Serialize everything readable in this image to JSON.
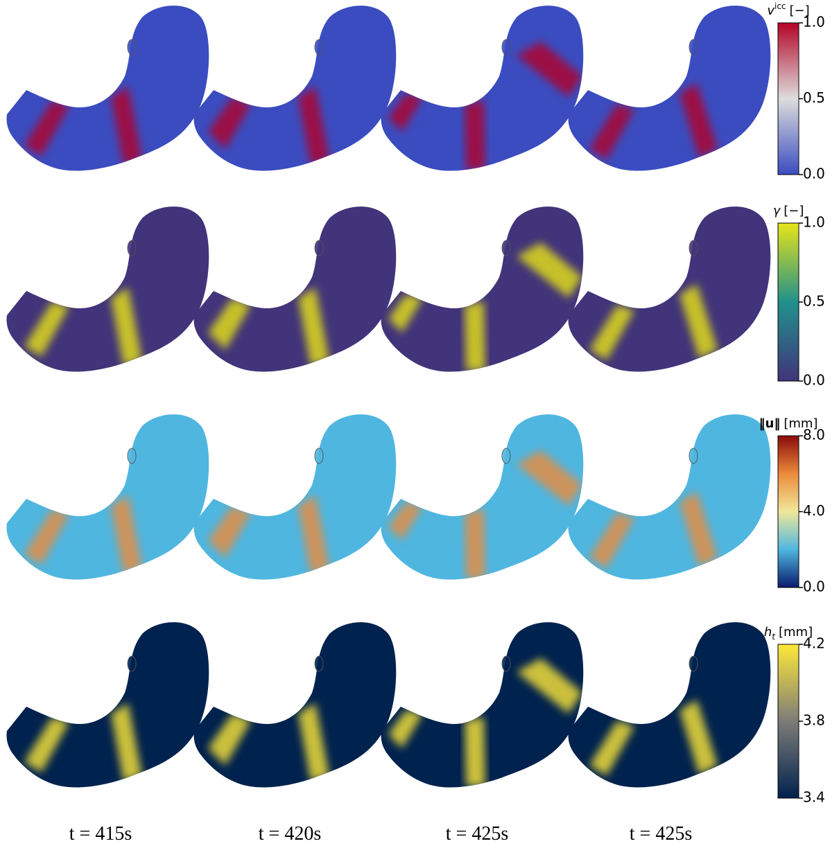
{
  "rows": [
    {
      "colorbar": {
        "symbol": "v",
        "superscript": "icc",
        "unit": "[−]",
        "lim": [
          0,
          1
        ],
        "ticks": [
          {
            "value": 0,
            "label": "0.0"
          },
          {
            "value": 0.5,
            "label": "0.5"
          },
          {
            "value": 1,
            "label": "1.0"
          }
        ],
        "colormap": [
          "#3b4cc0",
          "#dddddd",
          "#b40426"
        ]
      }
    },
    {
      "colorbar": {
        "symbol": "γ",
        "unit": "[−]",
        "lim": [
          0,
          1
        ],
        "ticks": [
          {
            "value": 0,
            "label": "0.0"
          },
          {
            "value": 0.5,
            "label": "0.5"
          },
          {
            "value": 1,
            "label": "1.0"
          }
        ],
        "colormap": [
          "#41347a",
          "#21918c",
          "#e8e419"
        ]
      }
    },
    {
      "colorbar": {
        "symbol": "‖u‖",
        "unit": "[mm]",
        "lim": [
          0,
          8
        ],
        "ticks": [
          {
            "value": 0,
            "label": "0.0"
          },
          {
            "value": 4,
            "label": "4.0"
          },
          {
            "value": 8,
            "label": "8.0"
          }
        ],
        "colormap": [
          "#0a1a6e",
          "#4fb6e0",
          "#f0e89a",
          "#ec8a3a",
          "#8b0a0a"
        ]
      }
    },
    {
      "colorbar": {
        "symbol": "h",
        "subscript": "t",
        "unit": "[mm]",
        "lim": [
          3.4,
          4.2
        ],
        "ticks": [
          {
            "value": 3.4,
            "label": "3.4"
          },
          {
            "value": 3.8,
            "label": "3.8"
          },
          {
            "value": 4.2,
            "label": "4.2"
          }
        ],
        "colormap": [
          "#00224e",
          "#7d7c78",
          "#fee838"
        ]
      }
    }
  ],
  "time_labels": [
    "t = 415s",
    "t = 420s",
    "t = 425s",
    "t = 425s"
  ]
}
